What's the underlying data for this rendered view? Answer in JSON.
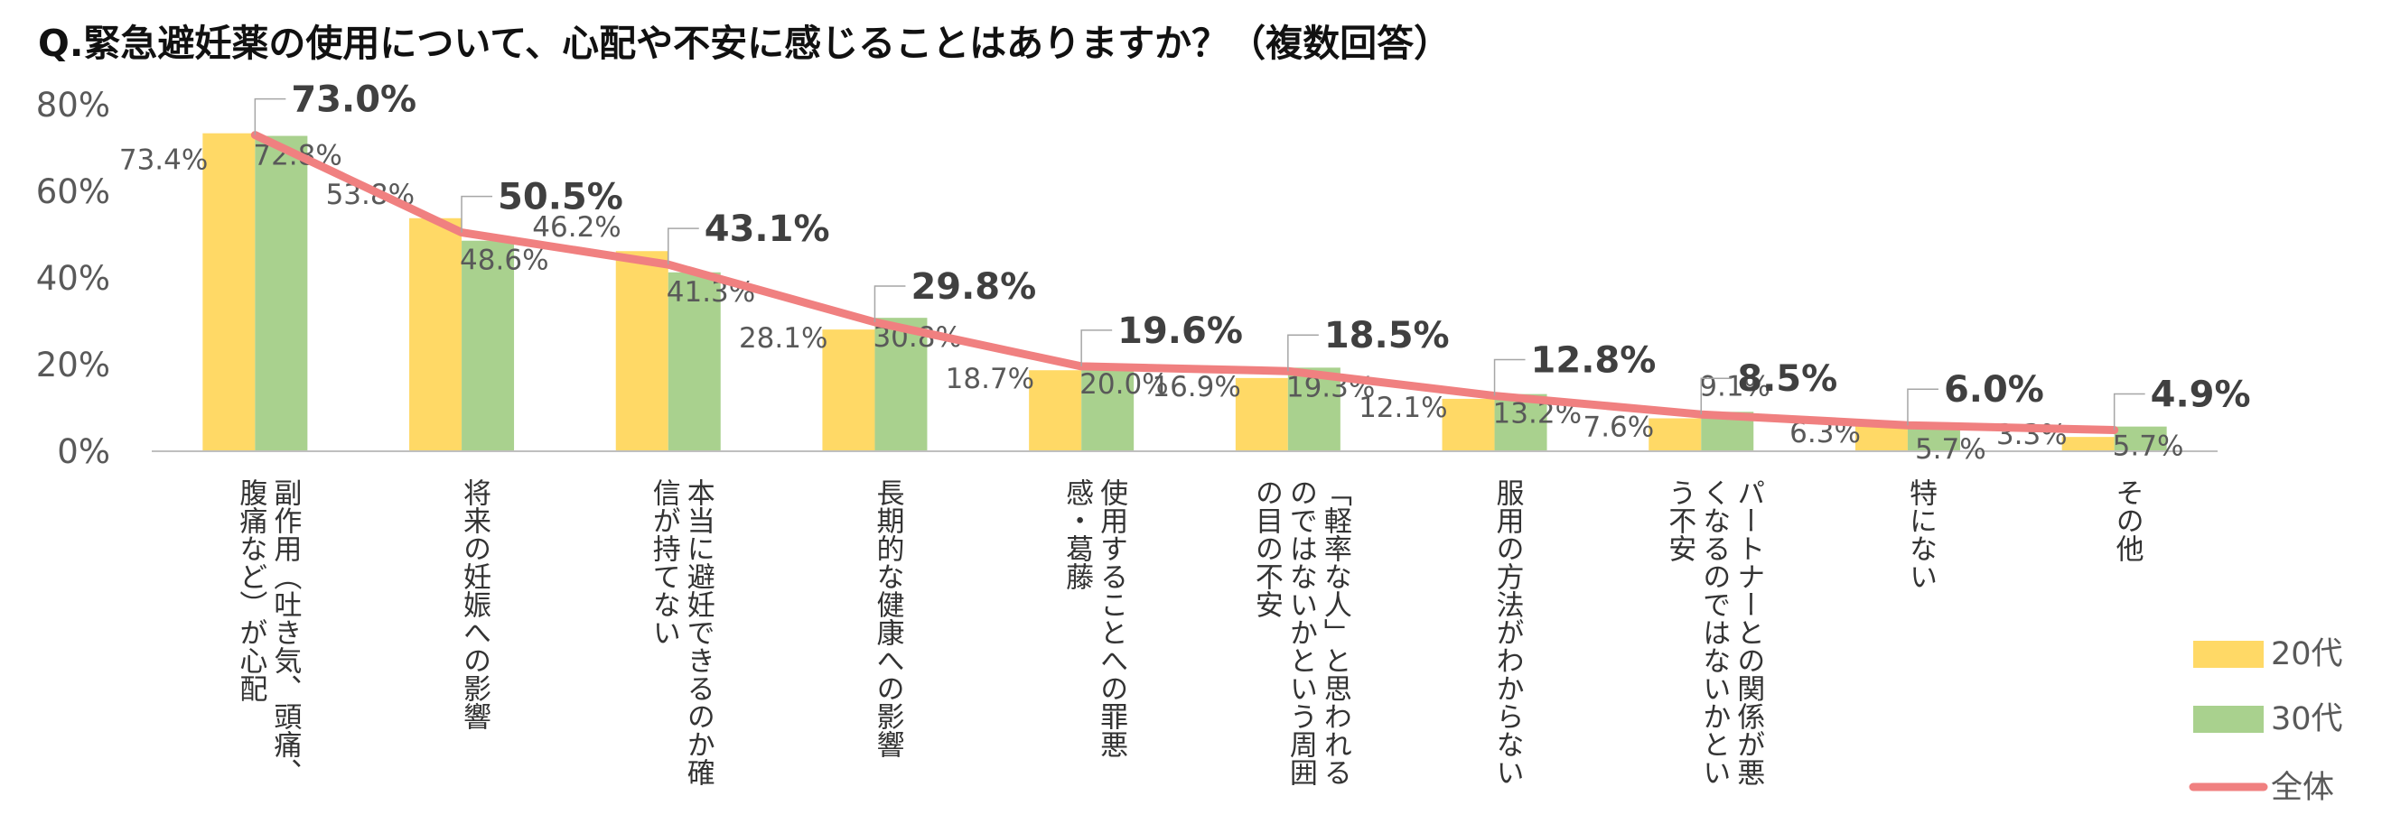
{
  "chart_data": {
    "type": "bar",
    "title": "Q.緊急避妊薬の使用について、心配や不安に感じることはありますか？（複数回答）",
    "categories": [
      [
        "副作用（吐き気、頭痛、",
        "腹痛など）が心配"
      ],
      [
        "将来の妊娠への影響"
      ],
      [
        "本当に避妊できるのか確",
        "信が持てない"
      ],
      [
        "長期的な健康への影響"
      ],
      [
        "使用することへの罪悪",
        "感・葛藤"
      ],
      [
        "「軽率な人」と思われる",
        "のではないかという周囲",
        "の目の不安"
      ],
      [
        "服用の方法がわからない"
      ],
      [
        "パートナーとの関係が悪",
        "くなるのではないかとい",
        "う不安"
      ],
      [
        "特にない"
      ],
      [
        "その他"
      ]
    ],
    "series": [
      {
        "name": "20代",
        "kind": "bar",
        "color": "#FFD966",
        "values": [
          73.4,
          53.8,
          46.2,
          28.1,
          18.7,
          16.9,
          12.1,
          7.6,
          6.3,
          3.3
        ],
        "labels": [
          "73.4%",
          "53.8%",
          "46.2%",
          "28.1%",
          "18.7%",
          "16.9%",
          "12.1%",
          "7.6%",
          "6.3%",
          "3.3%"
        ]
      },
      {
        "name": "30代",
        "kind": "bar",
        "color": "#A9D18E",
        "values": [
          72.8,
          48.6,
          41.3,
          30.8,
          20.0,
          19.3,
          13.2,
          9.1,
          5.7,
          5.7
        ],
        "labels": [
          "72.8%",
          "48.6%",
          "41.3%",
          "30.8%",
          "20.0%",
          "19.3%",
          "13.2%",
          "9.1%",
          "5.7%",
          "5.7%"
        ]
      },
      {
        "name": "全体",
        "kind": "line",
        "color": "#F08080",
        "values": [
          73.0,
          50.5,
          43.1,
          29.8,
          19.6,
          18.5,
          12.8,
          8.5,
          6.0,
          4.9
        ],
        "labels": [
          "73.0%",
          "50.5%",
          "43.1%",
          "29.8%",
          "19.6%",
          "18.5%",
          "12.8%",
          "8.5%",
          "6.0%",
          "4.9%"
        ]
      }
    ],
    "ylim": [
      0,
      80
    ],
    "yticks": [
      0,
      20,
      40,
      60,
      80
    ],
    "ytick_labels": [
      "0%",
      "20%",
      "40%",
      "60%",
      "80%"
    ],
    "legend": "bottom-right",
    "grid": false
  }
}
